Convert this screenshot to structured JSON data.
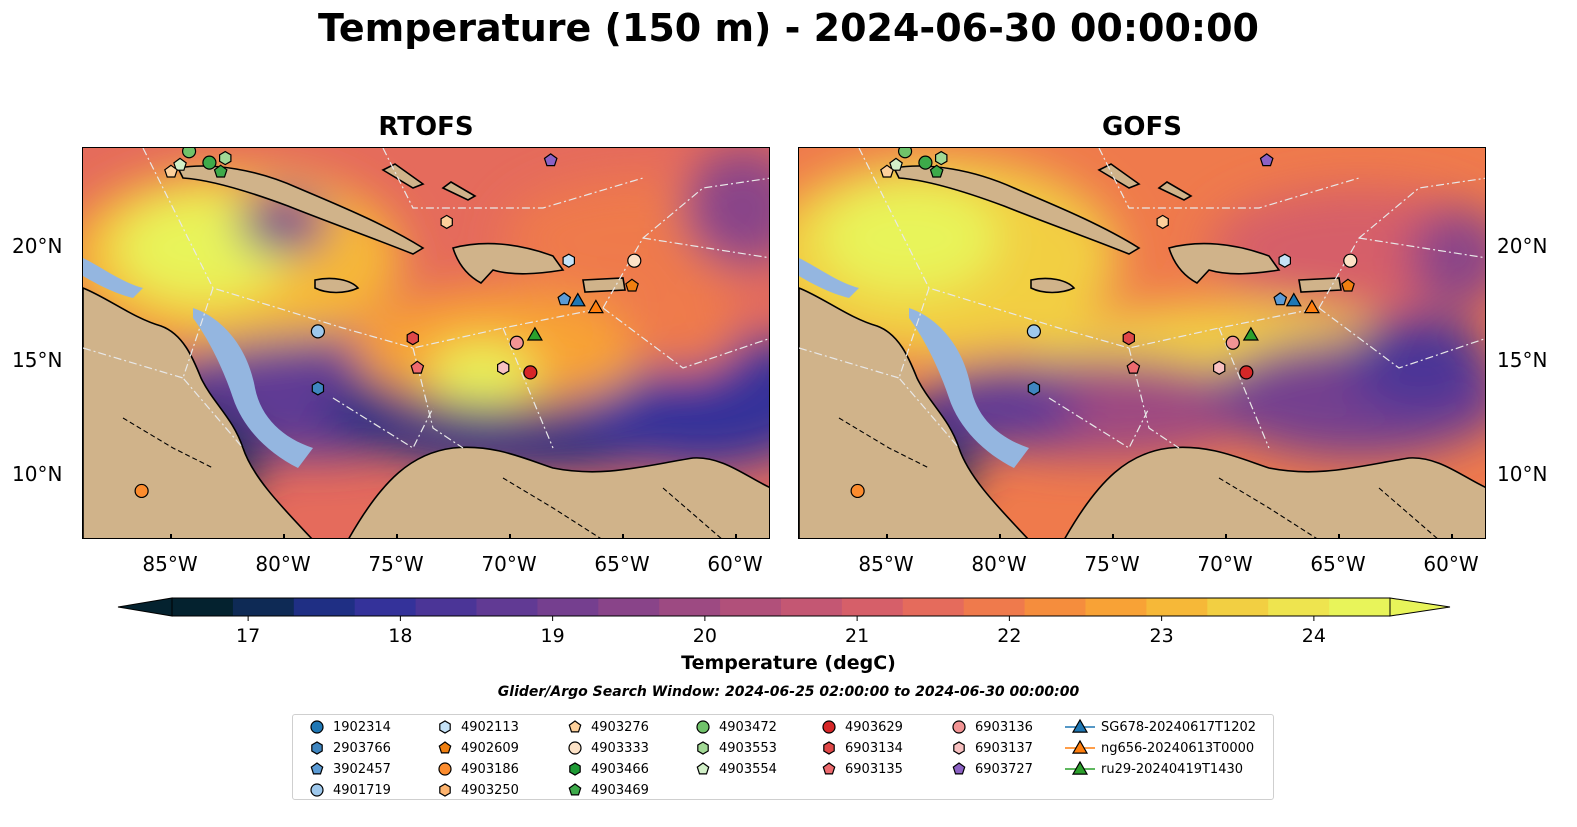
{
  "title": "Temperature (150 m) - 2024-06-30 00:00:00",
  "panels": [
    {
      "title": "RTOFS",
      "variant": "rtofs"
    },
    {
      "title": "GOFS",
      "variant": "gofs"
    }
  ],
  "lon_ticks": [
    "85°W",
    "80°W",
    "75°W",
    "70°W",
    "65°W",
    "60°W"
  ],
  "lat_ticks": [
    "20°N",
    "15°N",
    "10°N"
  ],
  "colorbar": {
    "label": "Temperature (degC)",
    "min": 16.5,
    "max": 24.5,
    "tick_labels": [
      "17",
      "18",
      "19",
      "20",
      "21",
      "22",
      "23",
      "24"
    ],
    "colors": [
      "#04222f",
      "#0e2a55",
      "#1f2f84",
      "#34329a",
      "#4b3597",
      "#613a94",
      "#753f8f",
      "#894489",
      "#9d4a82",
      "#b1507a",
      "#c45773",
      "#d65f69",
      "#e56b5c",
      "#ef7a4c",
      "#f58d3d",
      "#f8a236",
      "#f6b838",
      "#f2cf42",
      "#eee44f",
      "#e8f45a"
    ]
  },
  "search_window": "Glider/Argo Search Window: 2024-06-25 02:00:00 to 2024-06-30 00:00:00",
  "legend": {
    "columns": [
      [
        {
          "label": "1902314",
          "marker": "circle",
          "color": "#1f77b4"
        },
        {
          "label": "2903766",
          "marker": "hexagon",
          "color": "#3f86c0"
        },
        {
          "label": "3902457",
          "marker": "pentagon",
          "color": "#5b9bd5"
        },
        {
          "label": "4901719",
          "marker": "circle",
          "color": "#9ec8ec"
        }
      ],
      [
        {
          "label": "4902113",
          "marker": "hexagon",
          "color": "#c5e2f7"
        },
        {
          "label": "4902609",
          "marker": "pentagon",
          "color": "#f07f10"
        },
        {
          "label": "4903186",
          "marker": "circle",
          "color": "#fc8c2e"
        },
        {
          "label": "4903250",
          "marker": "hexagon",
          "color": "#fdb36e"
        }
      ],
      [
        {
          "label": "4903276",
          "marker": "pentagon",
          "color": "#fdd09b"
        },
        {
          "label": "4903333",
          "marker": "circle",
          "color": "#fde2c6"
        },
        {
          "label": "4903466",
          "marker": "hexagon",
          "color": "#1e9a34"
        },
        {
          "label": "4903469",
          "marker": "pentagon",
          "color": "#3daa4a"
        }
      ],
      [
        {
          "label": "4903472",
          "marker": "circle",
          "color": "#70c26a"
        },
        {
          "label": "4903553",
          "marker": "hexagon",
          "color": "#a2d995"
        },
        {
          "label": "4903554",
          "marker": "pentagon",
          "color": "#d2f0c8"
        }
      ],
      [
        {
          "label": "4903629",
          "marker": "circle",
          "color": "#d62728"
        },
        {
          "label": "6903134",
          "marker": "hexagon",
          "color": "#e04848"
        },
        {
          "label": "6903135",
          "marker": "pentagon",
          "color": "#ee6a6e"
        }
      ],
      [
        {
          "label": "6903136",
          "marker": "circle",
          "color": "#f29494"
        },
        {
          "label": "6903137",
          "marker": "hexagon",
          "color": "#f8c0c0"
        },
        {
          "label": "6903727",
          "marker": "pentagon",
          "color": "#8c61c4"
        }
      ],
      [
        {
          "label": "SG678-20240617T1202",
          "marker": "triangle",
          "color": "#1f77b4"
        },
        {
          "label": "ng656-20240613T0000",
          "marker": "triangle",
          "color": "#ff7f0e"
        },
        {
          "label": "ru29-20240419T1430",
          "marker": "triangle",
          "color": "#2ca02c"
        }
      ]
    ]
  }
}
